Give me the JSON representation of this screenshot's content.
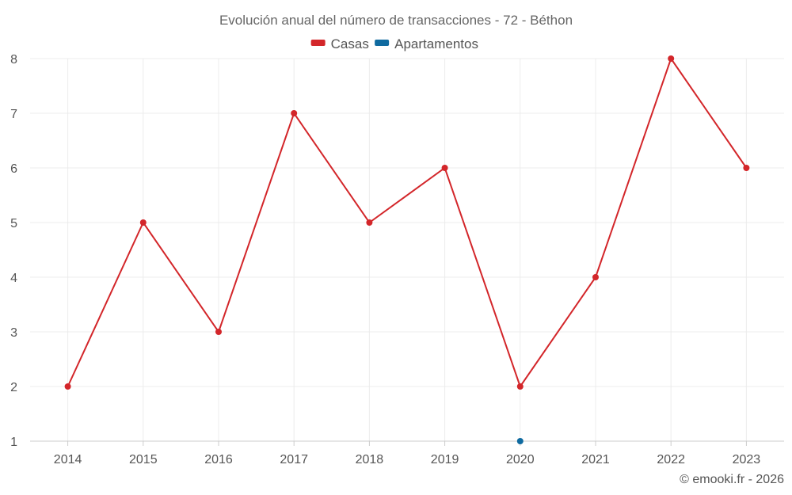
{
  "chart_data": {
    "type": "line",
    "title": "Evolución anual del número de transacciones - 72 - Béthon",
    "categories": [
      "2014",
      "2015",
      "2016",
      "2017",
      "2018",
      "2019",
      "2020",
      "2021",
      "2022",
      "2023"
    ],
    "series": [
      {
        "name": "Casas",
        "color": "#d3262a",
        "values": [
          2,
          5,
          3,
          7,
          5,
          6,
          2,
          4,
          8,
          6
        ]
      },
      {
        "name": "Apartamentos",
        "color": "#0f6aa0",
        "values": [
          null,
          null,
          null,
          null,
          null,
          null,
          1,
          null,
          null,
          null
        ]
      }
    ],
    "ylim": [
      1,
      8
    ],
    "yticks": [
      1,
      2,
      3,
      4,
      5,
      6,
      7,
      8
    ],
    "xlabel": "",
    "ylabel": "",
    "grid": true,
    "legend_position": "top-center"
  },
  "credit": "© emooki.fr - 2026"
}
